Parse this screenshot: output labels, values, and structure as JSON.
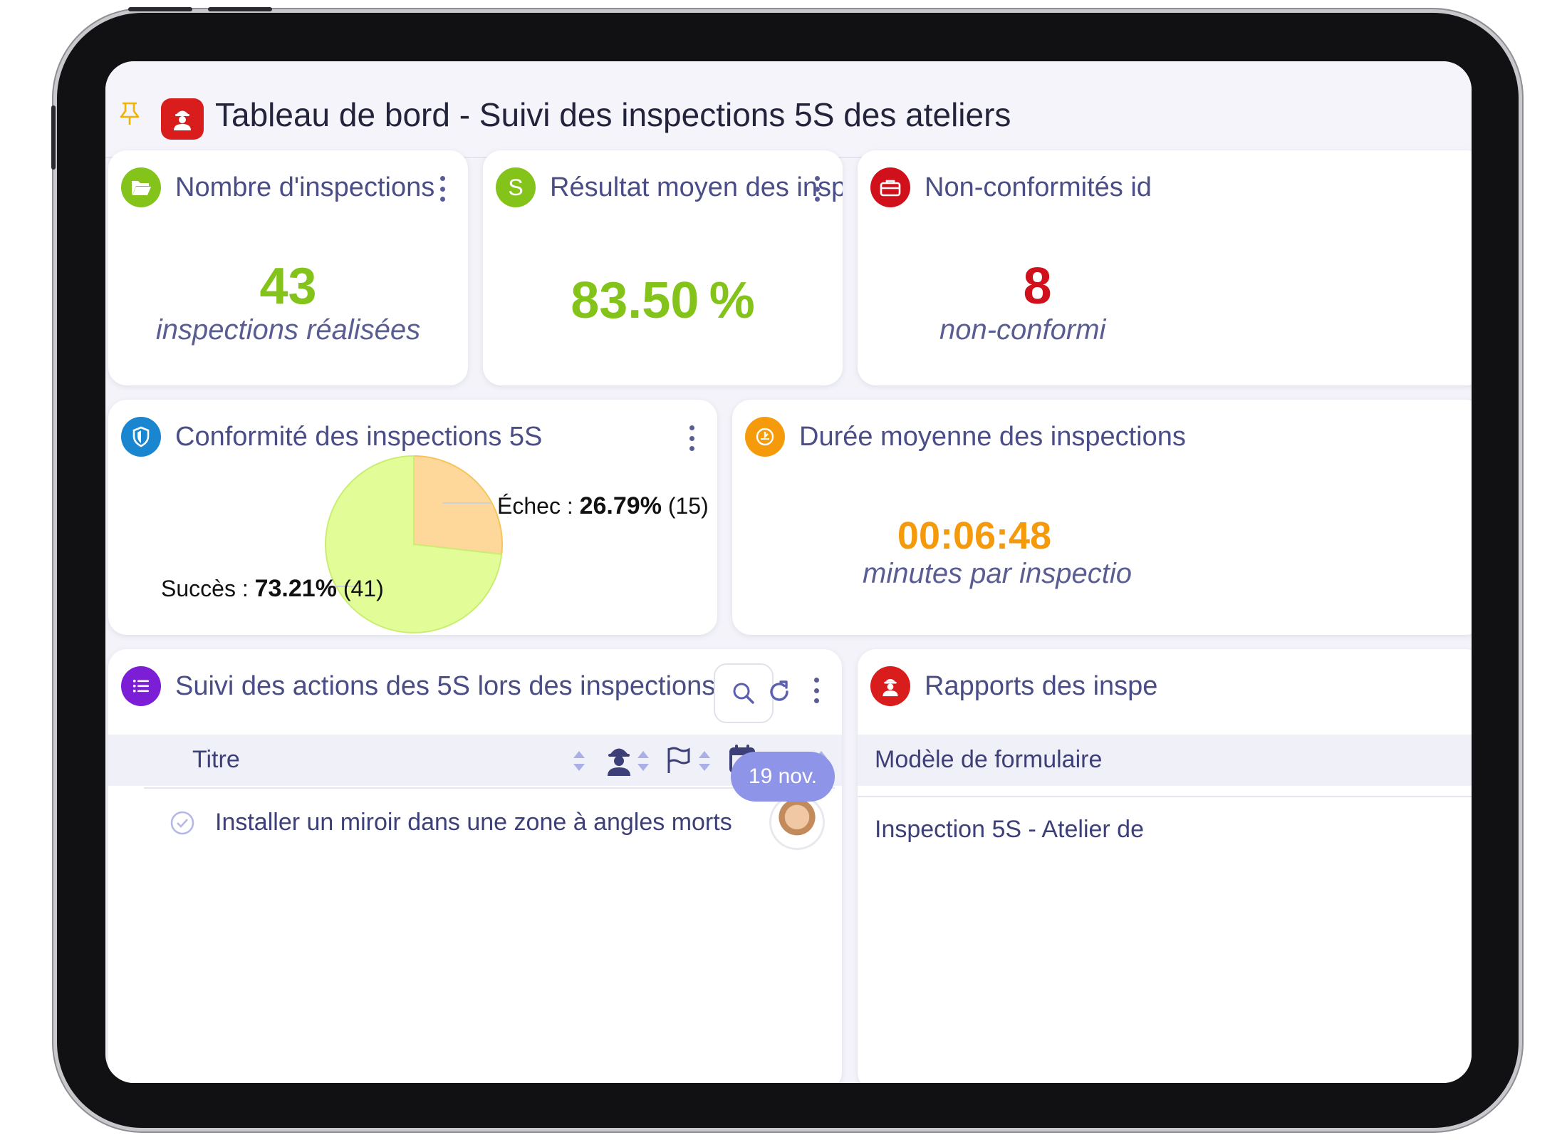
{
  "header": {
    "title": "Tableau de bord - Suivi des inspections 5S des ateliers"
  },
  "cards": {
    "inspections": {
      "title": "Nombre d'inspections",
      "value": "43",
      "subtitle": "inspections réalisées",
      "color": "#84c31a"
    },
    "average": {
      "title": "Résultat moyen des inspecti...",
      "value": "83.50 %",
      "icon_letter": "S",
      "color": "#84c31a"
    },
    "nonconformities": {
      "title": "Non-conformités id",
      "value": "8",
      "subtitle": "non-conformi",
      "color": "#d0101a"
    },
    "conformity": {
      "title": "Conformité des inspections 5S",
      "fail_label": "Échec : ",
      "fail_pct": "26.79%",
      "fail_count": "(15)",
      "success_label": "Succès : ",
      "success_pct": "73.21%",
      "success_count": "(41)"
    },
    "duration": {
      "title": "Durée moyenne des inspections",
      "value": "00:06:48",
      "subtitle": "minutes par inspectio",
      "color": "#f59a0b"
    },
    "actions": {
      "title": "Suivi des actions des 5S lors des inspections",
      "col_title": "Titre",
      "rows": [
        {
          "title": "Installer un miroir dans une zone à angles morts",
          "date": "19 nov."
        }
      ]
    },
    "reports": {
      "title": "Rapports des inspe",
      "col_model": "Modèle de formulaire",
      "rows": [
        {
          "model": "Inspection 5S - Atelier de"
        }
      ]
    }
  },
  "chart_data": {
    "type": "pie",
    "title": "Conformité des inspections 5S",
    "slices": [
      {
        "label": "Succès",
        "percent": 73.21,
        "count": 41,
        "color": "#e2fd98"
      },
      {
        "label": "Échec",
        "percent": 26.79,
        "count": 15,
        "color": "#fdd89a"
      }
    ]
  },
  "icons": {
    "pin": "pin-icon",
    "app": "inspector-icon",
    "inspections": "folder-open-icon",
    "average": "letter-s-icon",
    "nonconformities": "briefcase-icon",
    "conformity": "shield-icon",
    "duration": "gauge-icon",
    "actions": "list-icon",
    "reports": "inspector-icon"
  }
}
